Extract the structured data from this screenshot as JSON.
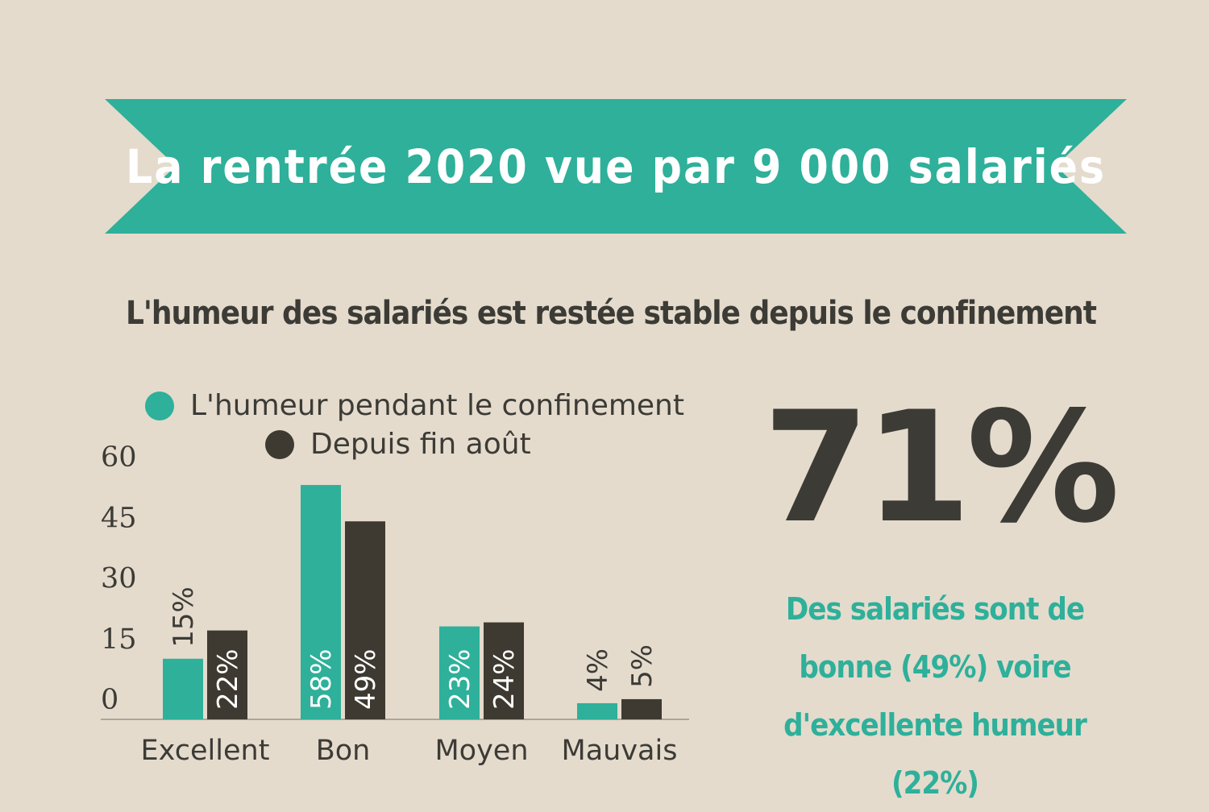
{
  "header": {
    "title": "La rentrée 2020 vue par 9 000 salariés"
  },
  "subtitle": "L'humeur des salariés est restée stable depuis le confinement",
  "stat": {
    "value": "71%",
    "caption": "Des salariés sont de bonne (49%) voire d'excellente humeur (22%)"
  },
  "colors": {
    "teal": "#2eb09a",
    "dark": "#3e3a31",
    "background": "#e4dbcd",
    "text": "#3c3b36"
  },
  "chart_data": {
    "type": "bar",
    "categories": [
      "Excellent",
      "Bon",
      "Moyen",
      "Mauvais"
    ],
    "series": [
      {
        "name": "L'humeur pendant le confinement",
        "values": [
          15,
          58,
          23,
          4
        ],
        "labels": [
          "15%",
          "58%",
          "23%",
          "4%"
        ],
        "color": "#2eb09a"
      },
      {
        "name": "Depuis fin août",
        "values": [
          22,
          49,
          24,
          5
        ],
        "labels": [
          "22%",
          "49%",
          "24%",
          "5%"
        ],
        "color": "#3e3a31"
      }
    ],
    "yticks": [
      0,
      15,
      30,
      45,
      60
    ],
    "ylim": [
      0,
      60
    ],
    "legend": "top",
    "grid": false
  }
}
